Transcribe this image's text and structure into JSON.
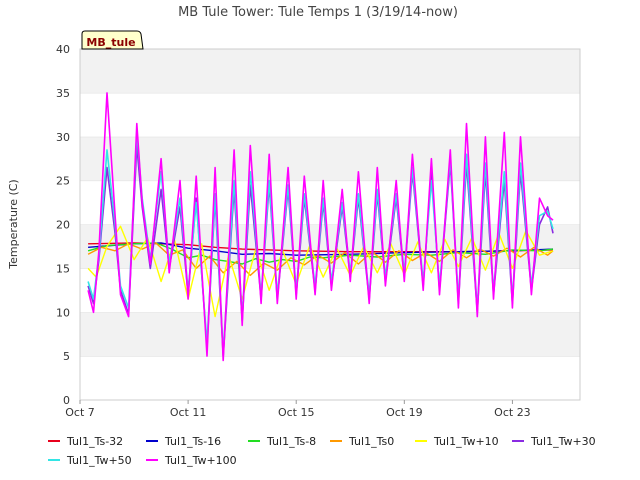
{
  "chart_data": {
    "type": "line",
    "title": "MB Tule Tower: Tule Temps 1 (3/19/14-now)",
    "ylabel": "Temperature (C)",
    "xlabel": "",
    "station_tag": "MB_tule",
    "ylim": [
      0,
      40
    ],
    "yticks": [
      0,
      5,
      10,
      15,
      20,
      25,
      30,
      35,
      40
    ],
    "xlim": [
      7.0,
      25.5
    ],
    "xticks": [
      {
        "value": 7,
        "label": "Oct 7"
      },
      {
        "value": 11,
        "label": "Oct 11"
      },
      {
        "value": 15,
        "label": "Oct 15"
      },
      {
        "value": 19,
        "label": "Oct 19"
      },
      {
        "value": 23,
        "label": "Oct 23"
      }
    ],
    "grid": "horizontal-bands",
    "legend_position": "bottom",
    "series": [
      {
        "name": "Tul1_Ts-32",
        "color": "#e8001c",
        "x": [
          7.3,
          9,
          11,
          12,
          13,
          15,
          17,
          19,
          21,
          23,
          24.5
        ],
        "y": [
          17.8,
          17.9,
          17.7,
          17.4,
          17.2,
          17.0,
          16.9,
          16.9,
          16.9,
          17.0,
          17.1
        ]
      },
      {
        "name": "Tul1_Ts-16",
        "color": "#0000cc",
        "x": [
          7.3,
          9,
          10,
          11,
          12,
          13,
          14,
          15,
          17,
          19,
          21,
          23,
          24.5
        ],
        "y": [
          17.4,
          17.8,
          17.9,
          17.3,
          17.0,
          16.6,
          16.7,
          16.5,
          16.6,
          16.8,
          16.9,
          17.0,
          17.2
        ]
      },
      {
        "name": "Tul1_Ts-8",
        "color": "#22dd22",
        "x": [
          7.3,
          8,
          9,
          9.8,
          10.4,
          11,
          11.5,
          12,
          12.5,
          13,
          13.5,
          14,
          14.5,
          15,
          15.5,
          16,
          17,
          18,
          19,
          20,
          21,
          22,
          23,
          24,
          24.5
        ],
        "y": [
          17.0,
          17.6,
          17.8,
          17.9,
          17.2,
          16.2,
          16.5,
          16.0,
          15.8,
          15.5,
          16.1,
          15.7,
          16.0,
          15.8,
          16.3,
          16.2,
          16.5,
          16.3,
          16.6,
          16.5,
          16.8,
          16.6,
          17.1,
          17.0,
          17.2
        ]
      },
      {
        "name": "Tul1_Ts0",
        "color": "#ff9900",
        "x": [
          7.3,
          7.8,
          8.3,
          8.8,
          9.3,
          9.8,
          10.3,
          10.8,
          11.3,
          11.8,
          12.3,
          12.8,
          13.3,
          13.8,
          14.3,
          14.8,
          15.3,
          15.8,
          16.3,
          16.8,
          17.3,
          17.8,
          18.3,
          18.8,
          19.3,
          19.8,
          20.3,
          20.8,
          21.3,
          21.8,
          22.3,
          22.8,
          23.3,
          23.8,
          24.3,
          24.5
        ],
        "y": [
          16.6,
          17.4,
          17.0,
          17.8,
          17.2,
          17.9,
          16.5,
          17.1,
          15.0,
          16.4,
          14.5,
          15.8,
          14.2,
          15.6,
          14.8,
          16.2,
          15.4,
          16.5,
          15.6,
          16.8,
          15.5,
          16.9,
          15.7,
          17.0,
          15.9,
          16.8,
          15.8,
          17.1,
          16.2,
          17.2,
          16.4,
          17.3,
          16.3,
          17.4,
          16.5,
          17.0
        ]
      },
      {
        "name": "Tul1_Tw+10",
        "color": "#ffff00",
        "x": [
          7.3,
          7.6,
          8.0,
          8.5,
          9.0,
          9.5,
          10.0,
          10.5,
          11.0,
          11.5,
          12.0,
          12.5,
          13.0,
          13.5,
          14.0,
          14.5,
          15.0,
          15.5,
          16.0,
          16.5,
          17.0,
          17.5,
          18.0,
          18.5,
          19.0,
          19.5,
          20.0,
          20.5,
          21.0,
          21.5,
          22.0,
          22.5,
          23.0,
          23.5,
          24.0,
          24.5
        ],
        "y": [
          15.0,
          14.0,
          17.5,
          19.8,
          16.0,
          18.5,
          13.5,
          18.2,
          11.5,
          17.8,
          9.5,
          16.5,
          11.5,
          17.2,
          12.5,
          17.0,
          13.2,
          17.6,
          14.0,
          17.3,
          14.2,
          17.5,
          14.5,
          17.8,
          14.3,
          18.0,
          14.5,
          18.3,
          15.2,
          18.5,
          14.8,
          19.0,
          15.0,
          19.3,
          16.5,
          17.0
        ]
      },
      {
        "name": "Tul1_Tw+30",
        "color": "#8a2be2",
        "x": [
          7.3,
          7.5,
          7.7,
          8.0,
          8.3,
          8.5,
          8.8,
          9.1,
          9.3,
          9.6,
          10.0,
          10.3,
          10.7,
          11.0,
          11.3,
          11.7,
          12.0,
          12.3,
          12.7,
          13.0,
          13.3,
          13.7,
          14.0,
          14.3,
          14.7,
          15.0,
          15.3,
          15.7,
          16.0,
          16.3,
          16.7,
          17.0,
          17.3,
          17.7,
          18.0,
          18.3,
          18.7,
          19.0,
          19.3,
          19.7,
          20.0,
          20.3,
          20.7,
          21.0,
          21.3,
          21.7,
          22.0,
          22.3,
          22.7,
          23.0,
          23.3,
          23.7,
          24.0,
          24.3,
          24.5
        ],
        "y": [
          13.0,
          11.0,
          16.0,
          26.5,
          19.0,
          12.5,
          9.8,
          29.0,
          22.0,
          15.0,
          24.0,
          15.0,
          22.0,
          12.0,
          23.0,
          6.0,
          23.0,
          5.0,
          24.0,
          9.0,
          24.5,
          11.5,
          24.5,
          11.5,
          24.0,
          12.0,
          23.0,
          12.5,
          22.5,
          13.0,
          22.0,
          14.0,
          23.0,
          11.5,
          23.5,
          13.5,
          23.0,
          14.0,
          26.0,
          13.0,
          26.0,
          12.5,
          27.0,
          11.0,
          27.0,
          10.0,
          26.0,
          12.0,
          25.0,
          11.0,
          26.0,
          12.5,
          20.0,
          22.0,
          19.0
        ]
      },
      {
        "name": "Tul1_Tw+50",
        "color": "#33e5e5",
        "x": [
          7.3,
          7.5,
          7.7,
          8.0,
          8.3,
          8.5,
          8.8,
          9.1,
          9.3,
          9.6,
          10.0,
          10.3,
          10.7,
          11.0,
          11.3,
          11.7,
          12.0,
          12.3,
          12.7,
          13.0,
          13.3,
          13.7,
          14.0,
          14.3,
          14.7,
          15.0,
          15.3,
          15.7,
          16.0,
          16.3,
          16.7,
          17.0,
          17.3,
          17.7,
          18.0,
          18.3,
          18.7,
          19.0,
          19.3,
          19.7,
          20.0,
          20.3,
          20.7,
          21.0,
          21.3,
          21.7,
          22.0,
          22.3,
          22.7,
          23.0,
          23.3,
          23.7,
          24.0,
          24.3,
          24.5
        ],
        "y": [
          13.5,
          11.5,
          16.5,
          28.5,
          20.0,
          13.0,
          10.5,
          30.5,
          23.0,
          16.0,
          26.0,
          15.5,
          23.0,
          12.5,
          22.5,
          6.5,
          23.5,
          5.5,
          25.0,
          9.5,
          26.0,
          12.0,
          25.0,
          12.0,
          24.5,
          12.5,
          23.5,
          13.0,
          23.0,
          13.5,
          22.5,
          14.5,
          23.5,
          12.0,
          24.0,
          14.0,
          23.5,
          14.5,
          26.5,
          13.5,
          25.0,
          13.0,
          27.5,
          11.5,
          28.0,
          10.5,
          27.0,
          12.5,
          26.0,
          11.5,
          27.0,
          13.0,
          21.0,
          21.5,
          19.5
        ]
      },
      {
        "name": "Tul1_Tw+100",
        "color": "#ff00ff",
        "x": [
          7.3,
          7.5,
          7.7,
          8.0,
          8.3,
          8.5,
          8.8,
          9.1,
          9.3,
          9.6,
          10.0,
          10.3,
          10.7,
          11.0,
          11.3,
          11.7,
          12.0,
          12.3,
          12.7,
          13.0,
          13.3,
          13.7,
          14.0,
          14.3,
          14.7,
          15.0,
          15.3,
          15.7,
          16.0,
          16.3,
          16.7,
          17.0,
          17.3,
          17.7,
          18.0,
          18.3,
          18.7,
          19.0,
          19.3,
          19.7,
          20.0,
          20.3,
          20.7,
          21.0,
          21.3,
          21.7,
          22.0,
          22.3,
          22.7,
          23.0,
          23.3,
          23.7,
          24.0,
          24.3,
          24.5
        ],
        "y": [
          12.5,
          10.0,
          17.0,
          35.0,
          21.0,
          12.0,
          9.5,
          31.5,
          22.5,
          15.5,
          27.5,
          14.5,
          25.0,
          11.5,
          25.5,
          5.0,
          26.5,
          4.5,
          28.5,
          8.5,
          29.0,
          11.0,
          28.0,
          11.0,
          26.5,
          11.5,
          25.5,
          12.0,
          25.0,
          12.5,
          24.0,
          13.5,
          26.0,
          11.0,
          26.5,
          13.0,
          25.0,
          13.5,
          28.0,
          12.5,
          27.5,
          12.0,
          28.5,
          10.5,
          31.5,
          9.5,
          30.0,
          11.5,
          30.5,
          10.5,
          30.0,
          12.0,
          23.0,
          21.0,
          20.5
        ]
      }
    ]
  }
}
